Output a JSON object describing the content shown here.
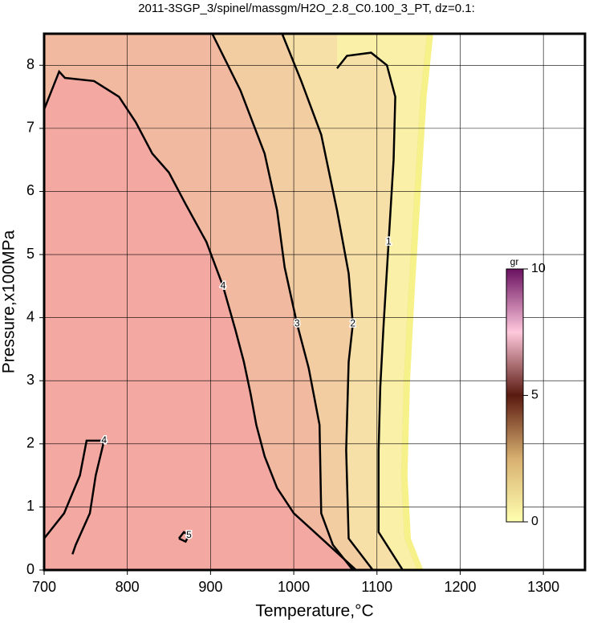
{
  "chart_data": {
    "type": "contour",
    "title": "2011-3SGP_3/spinel/massgm/H2O_2.8_C0.100_3_PT, dz=0.1:",
    "xlabel": "Temperature,°C",
    "ylabel": "Pressure,x100MPa",
    "xlim": [
      700,
      1350
    ],
    "ylim": [
      0,
      8.5
    ],
    "xticks": [
      700,
      800,
      900,
      1000,
      1100,
      1200,
      1300
    ],
    "yticks": [
      0,
      1,
      2,
      3,
      4,
      5,
      6,
      7,
      8
    ],
    "grid": true,
    "band_colors": [
      "#fbf0a8",
      "#f6e0a8",
      "#f3cda2",
      "#f1b9a0",
      "#f4a8a2"
    ],
    "edge_color": "#f7f18a",
    "domain_edge": {
      "x": [
        1160,
        1152,
        1145,
        1138,
        1132,
        1129,
        1133,
        1148
      ],
      "y": [
        8.5,
        7.5,
        6,
        4.5,
        3,
        1.5,
        0.5,
        0
      ]
    },
    "contours": [
      {
        "level": 4,
        "x": [
          700,
          718,
          725,
          760,
          790,
          810,
          830,
          850,
          870,
          895,
          915,
          930,
          940,
          948,
          955,
          965,
          980,
          1000,
          1025,
          1050,
          1075
        ],
        "y": [
          7.3,
          7.9,
          7.8,
          7.75,
          7.5,
          7.1,
          6.6,
          6.3,
          5.8,
          5.2,
          4.5,
          3.8,
          3.3,
          2.8,
          2.3,
          1.8,
          1.3,
          0.9,
          0.6,
          0.3,
          0
        ]
      },
      {
        "level": 3,
        "x": [
          902,
          936,
          965,
          980,
          989,
          1004,
          1018,
          1031,
          1033,
          1047,
          1071
        ],
        "y": [
          8.5,
          7.6,
          6.6,
          5.7,
          4.8,
          3.9,
          3.2,
          2.3,
          0.9,
          0.4,
          0
        ]
      },
      {
        "level": 2,
        "x": [
          986,
          1009,
          1033,
          1052,
          1066,
          1071,
          1066,
          1063,
          1066,
          1095
        ],
        "y": [
          8.5,
          7.75,
          6.9,
          5.7,
          4.7,
          3.9,
          3.3,
          1.9,
          0.5,
          0
        ]
      },
      {
        "level": 1,
        "x": [
          1052,
          1064,
          1093,
          1112,
          1122,
          1120,
          1114,
          1108,
          1104,
          1102,
          1102,
          1131
        ],
        "y": [
          7.95,
          8.15,
          8.2,
          8.0,
          7.5,
          6.5,
          5.2,
          3.9,
          2.9,
          1.9,
          0.6,
          0
        ]
      },
      {
        "level": 4,
        "x": [
          700,
          724,
          743,
          751,
          772,
          762,
          755,
          738,
          734
        ],
        "y": [
          0.5,
          0.9,
          1.5,
          2.05,
          2.05,
          1.5,
          0.9,
          0.4,
          0.25
        ]
      },
      {
        "level": 5,
        "x": [
          862,
          868,
          874,
          870,
          862
        ],
        "y": [
          0.5,
          0.6,
          0.55,
          0.45,
          0.5
        ]
      }
    ],
    "colorbar": {
      "label": "gr",
      "lim": [
        0,
        10
      ],
      "ticks": [
        0,
        5,
        10
      ]
    }
  }
}
